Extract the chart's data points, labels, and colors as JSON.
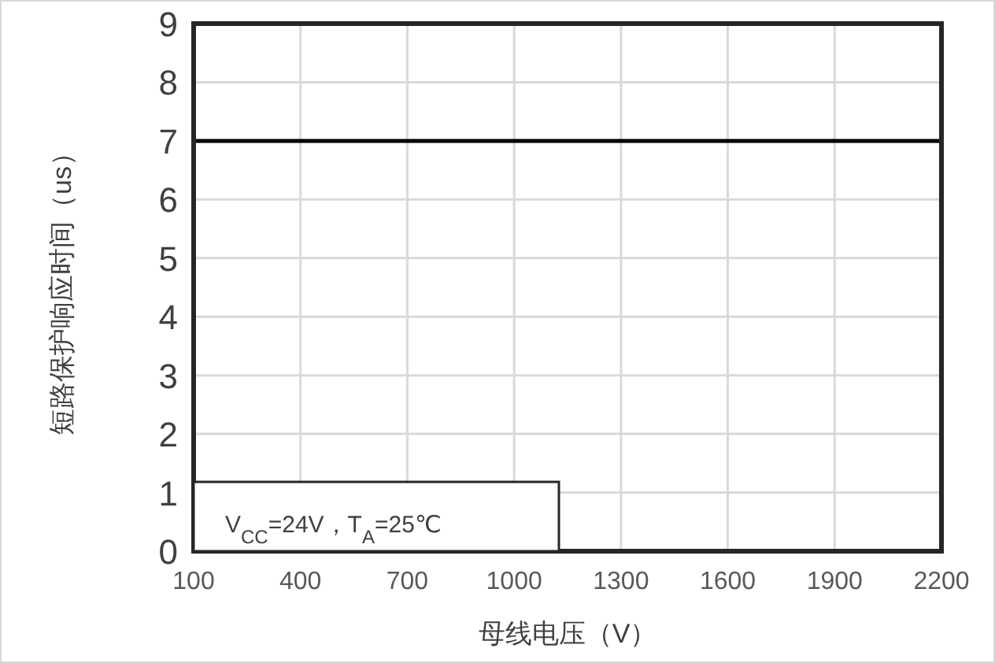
{
  "chart_data": {
    "type": "line",
    "x": [
      100,
      2200
    ],
    "series": [
      {
        "color": "#000000",
        "values": [
          7,
          7
        ]
      }
    ],
    "xlim": [
      100,
      2200
    ],
    "xticks": [
      100,
      400,
      700,
      1000,
      1300,
      1600,
      1900,
      2200
    ],
    "ylim": [
      0,
      9
    ],
    "yticks": [
      0,
      1,
      2,
      3,
      4,
      5,
      6,
      7,
      8,
      9
    ],
    "grid": true,
    "xlabel": "母线电压（V）",
    "ylabel": "短路保护响应时间（us）",
    "annotations": [
      "V$_{CC}$=24V，T$_{A}$=25℃"
    ]
  }
}
